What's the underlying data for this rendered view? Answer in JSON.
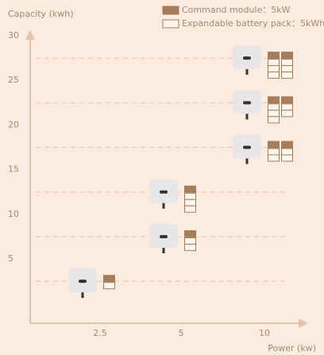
{
  "chart_data": {
    "type": "config",
    "y_label": "Capacity (kwh)",
    "x_label": "Power (kw)",
    "legend": [
      {
        "name": "Command module：5kW",
        "color": "#a57d5b",
        "kind": "module"
      },
      {
        "name": "Expandable battery pack：5kWh",
        "color": "#a57d5b",
        "kind": "pack"
      }
    ],
    "categories": [
      "2.5",
      "5",
      "10"
    ],
    "ylim": [
      -2.2,
      30
    ],
    "yticks": [
      5,
      10,
      15,
      20,
      25,
      30
    ],
    "points": [
      {
        "x": 0,
        "y": 2.5,
        "stacks": [
          1
        ]
      },
      {
        "x": 1,
        "y": 7.5,
        "stacks": [
          2
        ]
      },
      {
        "x": 1,
        "y": 12.5,
        "stacks": [
          3
        ]
      },
      {
        "x": 2,
        "y": 17.5,
        "stacks": [
          2,
          2
        ]
      },
      {
        "x": 2,
        "y": 22.5,
        "stacks": [
          3,
          2
        ]
      },
      {
        "x": 2,
        "y": 27.5,
        "stacks": [
          3,
          3
        ]
      }
    ]
  }
}
